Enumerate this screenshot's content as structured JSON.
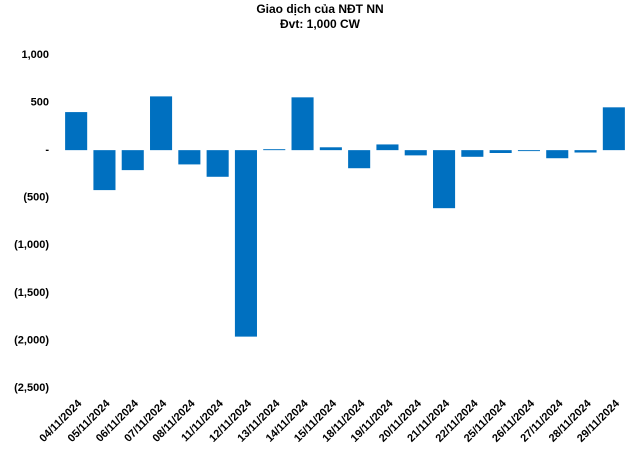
{
  "chart_data": {
    "type": "bar",
    "title": "Giao dịch của NĐT NN",
    "subtitle": "Đvt: 1,000 CW",
    "categories": [
      "04/11/2024",
      "05/11/2024",
      "06/11/2024",
      "07/11/2024",
      "08/11/2024",
      "11/11/2024",
      "12/11/2024",
      "13/11/2024",
      "14/11/2024",
      "15/11/2024",
      "18/11/2024",
      "19/11/2024",
      "20/11/2024",
      "21/11/2024",
      "22/11/2024",
      "25/11/2024",
      "26/11/2024",
      "27/11/2024",
      "28/11/2024",
      "29/11/2024"
    ],
    "values": [
      400,
      -420,
      -210,
      565,
      -150,
      -280,
      -1960,
      10,
      555,
      30,
      -190,
      60,
      -55,
      -610,
      -70,
      -30,
      -10,
      -85,
      -25,
      450
    ],
    "color": "#0070c0",
    "ylim": [
      -2500,
      1000
    ],
    "yticks": [
      {
        "value": -2500,
        "label": "(2,500)"
      },
      {
        "value": -2000,
        "label": "(2,000)"
      },
      {
        "value": -1500,
        "label": "(1,500)"
      },
      {
        "value": -1000,
        "label": "(1,000)"
      },
      {
        "value": -500,
        "label": "(500)"
      },
      {
        "value": 0,
        "label": "-"
      },
      500,
      {
        "value": 1000,
        "label": "1,000"
      }
    ],
    "grid": false
  }
}
